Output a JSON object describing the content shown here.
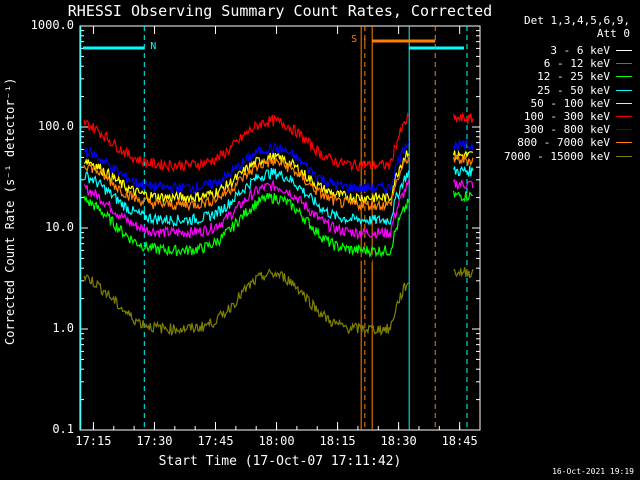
{
  "chart_data": {
    "type": "line",
    "title": "RHESSI Observing Summary Count Rates, Corrected",
    "xlabel": "Start Time (17-Oct-07 17:11:42)",
    "ylabel": "Corrected Count Rate (s⁻¹ detector⁻¹)",
    "yscale": "log",
    "ylim": [
      0.1,
      1000
    ],
    "xlim_minutes": [
      "17:11:42",
      "18:50:00"
    ],
    "x_ticks": [
      "17:15",
      "17:30",
      "17:45",
      "18:00",
      "18:15",
      "18:30",
      "18:45"
    ],
    "y_ticks": [
      "0.1",
      "1.0",
      "10.0",
      "100.0",
      "1000.0"
    ],
    "legend_header": [
      "Det 1,3,4,5,6,9,",
      "Att 0"
    ],
    "series": [
      {
        "name": "3 - 6 keV",
        "color": "#ffffff",
        "trace_color": "#000000",
        "min": 5,
        "max": 16
      },
      {
        "name": "6 - 12 keV",
        "color": "#ff00ff",
        "min": 9,
        "max": 26
      },
      {
        "name": "12 - 25 keV",
        "color": "#00ff00",
        "min": 6,
        "max": 20
      },
      {
        "name": "25 - 50 keV",
        "color": "#00ffff",
        "min": 12,
        "max": 35
      },
      {
        "name": "50 - 100 keV",
        "color": "#ffff00",
        "min": 20,
        "max": 50
      },
      {
        "name": "100 - 300 keV",
        "color": "#ff0000",
        "min": 42,
        "max": 115
      },
      {
        "name": "300 - 800 keV",
        "color": "#0000ff",
        "min": 25,
        "max": 62
      },
      {
        "name": "800 - 7000 keV",
        "color": "#ff8000",
        "min": 17,
        "max": 45
      },
      {
        "name": "7000 - 15000 keV",
        "color": "#808000",
        "min": 1,
        "max": 3.5
      }
    ],
    "flags": [
      {
        "label": "N",
        "color": "#00ffff"
      },
      {
        "label": "S",
        "color": "#ff8000"
      }
    ],
    "timestamp": "16-Oct-2021 19:19"
  }
}
